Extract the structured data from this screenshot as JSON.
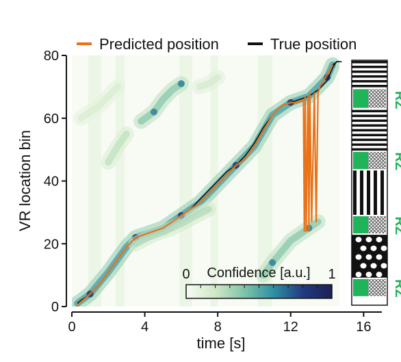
{
  "chart_data": {
    "type": "heatmap",
    "title": "",
    "xlabel": "time [s]",
    "ylabel": "VR location bin",
    "xlim": [
      0,
      17
    ],
    "ylim": [
      0,
      80
    ],
    "xticks": [
      "0",
      "4",
      "8",
      "12",
      "16"
    ],
    "yticks": [
      "0",
      "20",
      "40",
      "60",
      "80"
    ],
    "grid": false,
    "legend_position": "top",
    "colorbar": {
      "label": "Confidence [a.u.]",
      "min_label": "0",
      "max_label": "1",
      "colors": [
        "#f7fbf3",
        "#cfe8c6",
        "#7fc3a8",
        "#2f8fa2",
        "#223a82",
        "#1b2255"
      ]
    },
    "series": [
      {
        "name": "Predicted position",
        "color": "#e8731a",
        "x": [
          0.3,
          0.4,
          0.6,
          1.0,
          1.5,
          2.0,
          2.5,
          3.0,
          3.5,
          4.0,
          4.5,
          5.0,
          5.5,
          6.0,
          6.5,
          7.0,
          7.5,
          8.0,
          8.5,
          9.0,
          9.5,
          10.0,
          10.5,
          11.0,
          11.5,
          12.0,
          12.4,
          12.7,
          12.75,
          12.8,
          12.85,
          12.95,
          13.0,
          13.05,
          13.15,
          13.3,
          13.4,
          13.5,
          13.6,
          13.7,
          14.0,
          14.3
        ],
        "y": [
          0,
          1,
          2,
          4,
          7,
          11,
          15,
          19,
          22,
          23,
          24,
          25,
          27,
          29,
          31,
          33,
          36,
          39,
          42,
          45,
          47,
          51,
          56,
          61,
          64,
          65,
          65,
          66,
          24,
          67,
          24,
          67,
          24,
          68,
          27,
          68,
          27,
          68,
          70,
          71,
          74,
          77
        ],
        "values_note": ""
      },
      {
        "name": "True position",
        "color": "#111111",
        "x": [
          0.3,
          0.5,
          1.0,
          1.5,
          2.0,
          2.5,
          3.0,
          3.5,
          4.0,
          4.5,
          5.0,
          5.5,
          6.0,
          6.5,
          7.0,
          7.5,
          8.0,
          8.5,
          9.0,
          9.5,
          10.0,
          10.5,
          11.0,
          11.5,
          12.0,
          12.5,
          13.0,
          13.5,
          14.0,
          14.3,
          14.5,
          14.8
        ],
        "y": [
          1,
          2,
          4,
          7,
          11,
          15,
          19,
          22,
          23,
          24,
          25,
          27,
          29,
          31,
          34,
          37,
          40,
          43,
          45,
          48,
          52,
          57,
          61,
          64,
          65,
          66,
          67,
          69,
          72,
          76,
          78,
          78
        ]
      }
    ],
    "heatmap_tracks": [
      {
        "x": [
          0.3,
          1.0,
          2.0,
          3.0,
          3.5,
          4.0,
          5.0,
          6.0,
          7.0,
          8.0,
          9.0,
          10.0,
          11.0,
          12.0,
          12.5,
          13.0,
          14.0,
          14.3
        ],
        "y": [
          1,
          4,
          11,
          19,
          22,
          23,
          25,
          29,
          33,
          39,
          45,
          51,
          61,
          65,
          66,
          67,
          73,
          77
        ],
        "strength": 0.8
      },
      {
        "x": [
          3.8,
          4.5,
          5.0,
          5.5,
          6.0
        ],
        "y": [
          59,
          62,
          66,
          69,
          71
        ],
        "strength": 0.55
      },
      {
        "x": [
          2.0,
          2.5,
          3.0
        ],
        "y": [
          46,
          51,
          55
        ],
        "strength": 0.35
      },
      {
        "x": [
          3.5,
          4.5,
          5.5,
          6.2,
          6.8,
          7.5
        ],
        "y": [
          20,
          23,
          25,
          27,
          29,
          31
        ],
        "strength": 0.4
      },
      {
        "x": [
          10.5,
          11.0,
          12.0,
          12.5,
          13.0,
          13.5
        ],
        "y": [
          10,
          14,
          21,
          23,
          25,
          27
        ],
        "strength": 0.55
      },
      {
        "x": [
          7.0,
          7.5,
          8.0
        ],
        "y": [
          70,
          71,
          73
        ],
        "strength": 0.25
      },
      {
        "x": [
          0.5,
          1.5,
          2.5
        ],
        "y": [
          60,
          64,
          70
        ],
        "strength": 0.22
      }
    ],
    "track_panel": {
      "reward_zone_label": "RZ",
      "reward_zone_color": "#1fb35a",
      "segments": [
        {
          "kind": "blank",
          "y0": 0,
          "y1": 2.5
        },
        {
          "kind": "rz",
          "y0": 2.5,
          "y1": 9
        },
        {
          "kind": "dots",
          "y0": 9,
          "y1": 23
        },
        {
          "kind": "rz",
          "y0": 23,
          "y1": 29.5
        },
        {
          "kind": "vstripes",
          "y0": 29.5,
          "y1": 44
        },
        {
          "kind": "rz",
          "y0": 44,
          "y1": 50.5
        },
        {
          "kind": "hstripes",
          "y0": 50.5,
          "y1": 64
        },
        {
          "kind": "rz",
          "y0": 64,
          "y1": 71
        },
        {
          "kind": "hstripes",
          "y0": 71,
          "y1": 80
        }
      ],
      "rz_labels_at": [
        5.5,
        26,
        47,
        67
      ]
    }
  }
}
